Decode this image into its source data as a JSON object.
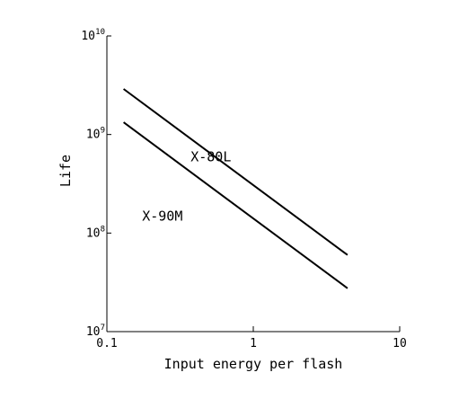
{
  "chart_data": {
    "type": "line",
    "xlabel": "Input energy per flash",
    "ylabel": "Life",
    "x_scale": "log",
    "y_scale": "log",
    "xlim": [
      0.1,
      10
    ],
    "ylim": [
      10000000,
      10000000000
    ],
    "grid": false,
    "x_ticks": [
      {
        "value": 0.1,
        "label": "0.1"
      },
      {
        "value": 1,
        "label": "1"
      },
      {
        "value": 10,
        "label": "10"
      }
    ],
    "y_ticks": [
      {
        "value": 10000000,
        "base": "10",
        "exp": "7"
      },
      {
        "value": 100000000,
        "base": "10",
        "exp": "8"
      },
      {
        "value": 1000000000,
        "base": "10",
        "exp": "9"
      },
      {
        "value": 10000000000,
        "base": "10",
        "exp": "10"
      }
    ],
    "series": [
      {
        "name": "X-80L",
        "x": [
          0.13,
          4.4
        ],
        "y": [
          2900000000,
          60000000
        ]
      },
      {
        "name": "X-90M",
        "x": [
          0.13,
          4.4
        ],
        "y": [
          1330000000,
          27500000
        ]
      }
    ]
  }
}
